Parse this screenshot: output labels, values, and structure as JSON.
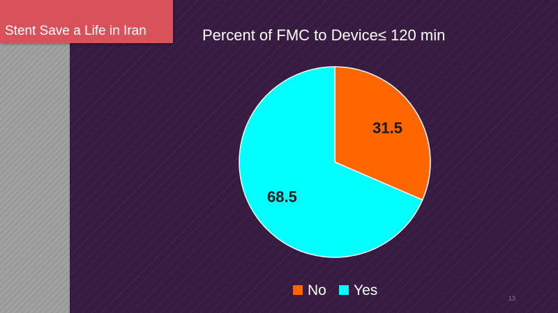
{
  "slide": {
    "banner_text": "Stent Save a Life in Iran",
    "page_number": "13"
  },
  "colors": {
    "banner": "#d9525b",
    "background": "#371b41",
    "left_panel": "#9a9a9a"
  },
  "chart_data": {
    "type": "pie",
    "title": "Percent of FMC to Device≤ 120 min",
    "categories": [
      "No",
      "Yes"
    ],
    "values": [
      31.5,
      68.5
    ],
    "colors": [
      "#ff6600",
      "#00ffff"
    ],
    "data_labels": [
      "31.5",
      "68.5"
    ],
    "legend": "bottom",
    "start_angle": "12 o'clock",
    "direction": "clockwise"
  }
}
